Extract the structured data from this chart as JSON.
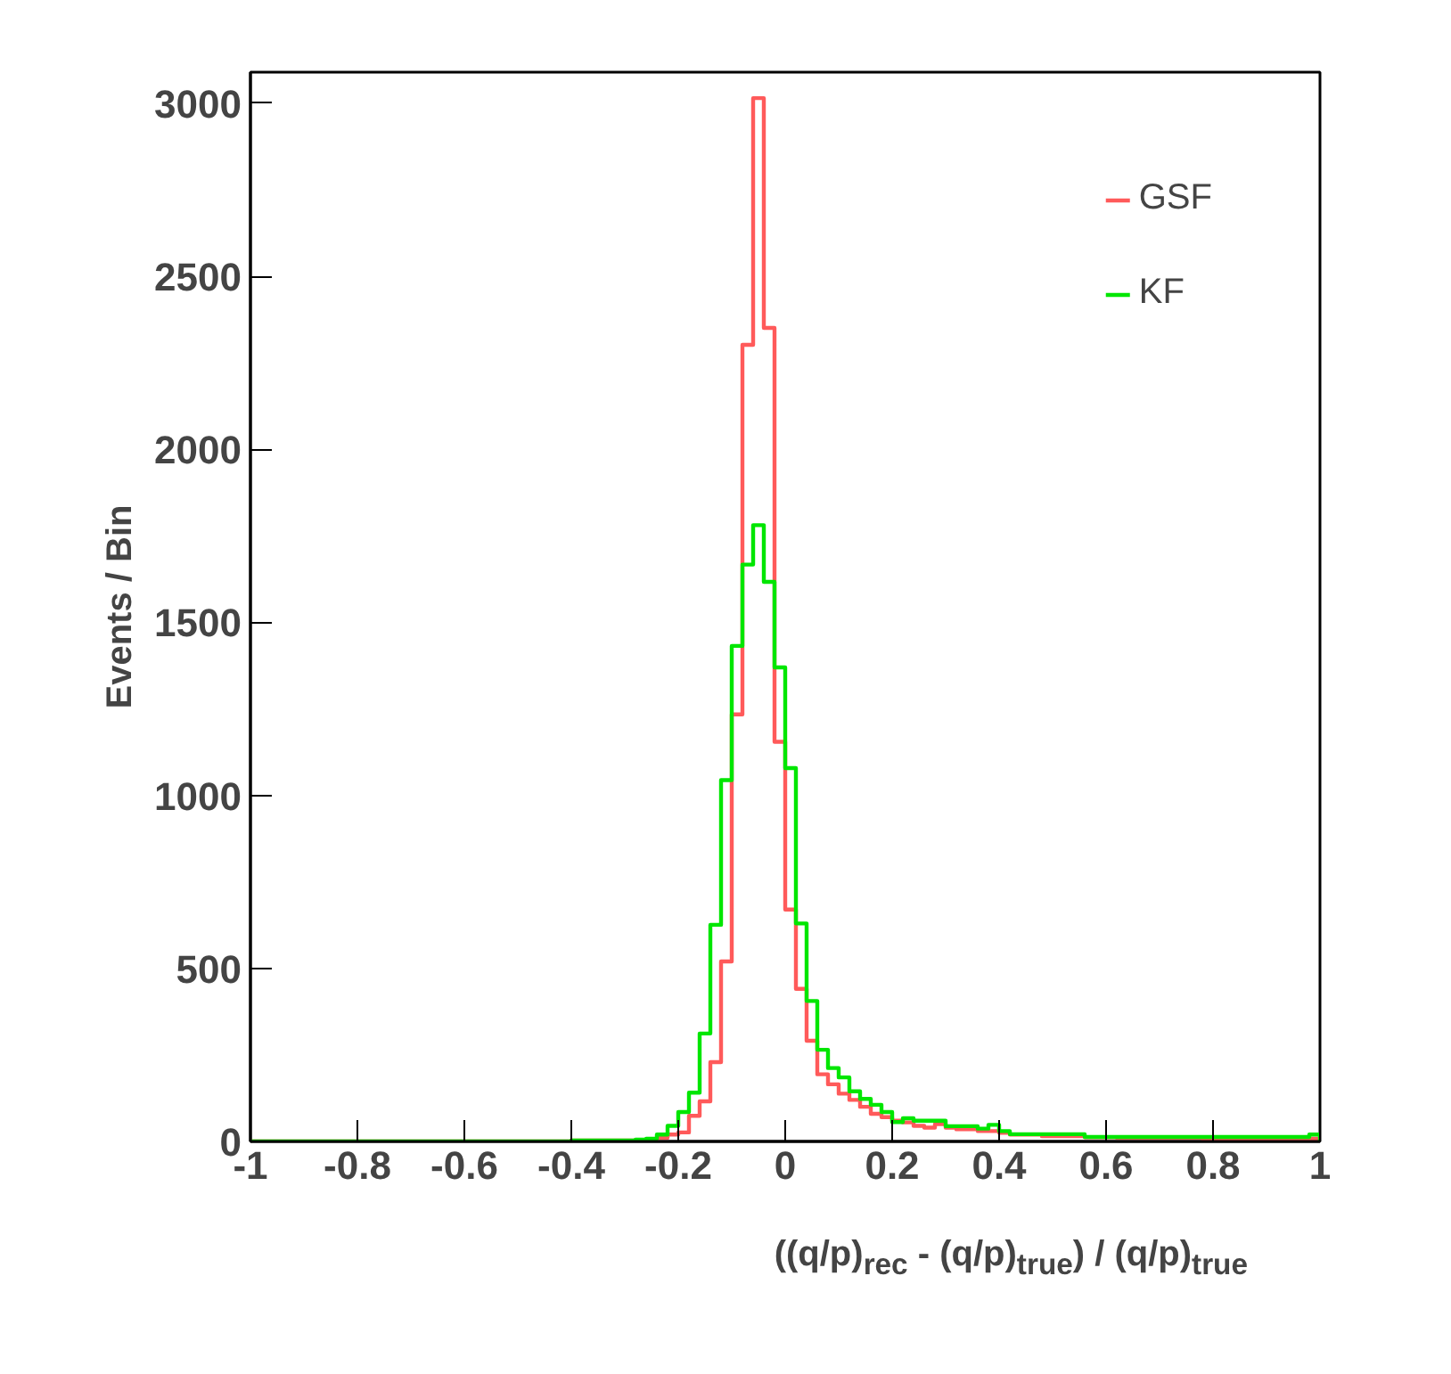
{
  "chart_data": {
    "type": "histogram",
    "xlabel": "((q/p)$_{rec}$ - (q/p)$_{true}$) / (q/p)$_{true}$",
    "ylabel": "Events / Bin",
    "bins": [
      -1.0,
      -0.98,
      -0.96,
      -0.94,
      -0.92,
      -0.9,
      -0.88,
      -0.86,
      -0.84,
      -0.82,
      -0.8,
      -0.78,
      -0.76,
      -0.74,
      -0.72,
      -0.7,
      -0.68,
      -0.66,
      -0.64,
      -0.62,
      -0.6,
      -0.58,
      -0.56,
      -0.54,
      -0.52,
      -0.5,
      -0.48,
      -0.46,
      -0.44,
      -0.42,
      -0.4,
      -0.38,
      -0.36,
      -0.34,
      -0.32,
      -0.3,
      -0.28,
      -0.26,
      -0.24,
      -0.22,
      -0.2,
      -0.18,
      -0.16,
      -0.14,
      -0.12,
      -0.1,
      -0.08,
      -0.06,
      -0.04,
      -0.02,
      0.0,
      0.02,
      0.04,
      0.06,
      0.08,
      0.1,
      0.12,
      0.14,
      0.16,
      0.18,
      0.2,
      0.22,
      0.24,
      0.26,
      0.28,
      0.3,
      0.32,
      0.34,
      0.36,
      0.38,
      0.4,
      0.42,
      0.44,
      0.46,
      0.48,
      0.5,
      0.52,
      0.54,
      0.56,
      0.58,
      0.6,
      0.62,
      0.64,
      0.66,
      0.68,
      0.7,
      0.72,
      0.74,
      0.76,
      0.78,
      0.8,
      0.82,
      0.84,
      0.86,
      0.88,
      0.9,
      0.92,
      0.94,
      0.96,
      0.98,
      1.0
    ],
    "series": [
      {
        "name": "GSF",
        "color": "#ff5a5a",
        "values": [
          0,
          0,
          0,
          0,
          0,
          0,
          0,
          0,
          0,
          0,
          0,
          0,
          0,
          0,
          0,
          0,
          0,
          0,
          0,
          0,
          0,
          0,
          0,
          0,
          0,
          0,
          0,
          0,
          0,
          0,
          3,
          3,
          3,
          3,
          3,
          3,
          3,
          5,
          10,
          20,
          26,
          74,
          116,
          229,
          520,
          1234,
          2302,
          3015,
          2351,
          1155,
          670,
          441,
          291,
          194,
          165,
          138,
          120,
          100,
          80,
          70,
          60,
          55,
          45,
          40,
          50,
          40,
          35,
          35,
          30,
          30,
          25,
          20,
          20,
          20,
          15,
          15,
          15,
          15,
          12,
          12,
          12,
          10,
          10,
          10,
          10,
          10,
          10,
          10,
          10,
          8,
          8,
          8,
          8,
          8,
          8,
          8,
          8,
          8,
          8,
          8
        ]
      },
      {
        "name": "KF",
        "color": "#00e600",
        "values": [
          0,
          0,
          0,
          0,
          0,
          0,
          0,
          0,
          0,
          0,
          0,
          0,
          0,
          0,
          0,
          0,
          0,
          0,
          0,
          0,
          0,
          0,
          0,
          0,
          0,
          0,
          0,
          0,
          0,
          0,
          3,
          3,
          3,
          3,
          3,
          3,
          5,
          8,
          20,
          45,
          85,
          141,
          312,
          626,
          1044,
          1432,
          1667,
          1781,
          1617,
          1370,
          1079,
          630,
          406,
          265,
          212,
          185,
          145,
          123,
          106,
          85,
          56,
          67,
          60,
          60,
          60,
          44,
          44,
          44,
          37,
          48,
          30,
          21,
          21,
          21,
          21,
          21,
          21,
          21,
          13,
          13,
          13,
          13,
          13,
          13,
          13,
          13,
          13,
          13,
          13,
          13,
          13,
          13,
          13,
          13,
          13,
          13,
          13,
          13,
          13,
          20
        ]
      }
    ],
    "xlim": [
      -1,
      1
    ],
    "ylim": [
      0,
      3090
    ],
    "xticks": [
      -1,
      -0.8,
      -0.6,
      -0.4,
      -0.2,
      0,
      0.2,
      0.4,
      0.6,
      0.8,
      1
    ],
    "yticks": [
      0,
      500,
      1000,
      1500,
      2000,
      2500,
      3000
    ],
    "grid": false,
    "legend": "top right"
  }
}
